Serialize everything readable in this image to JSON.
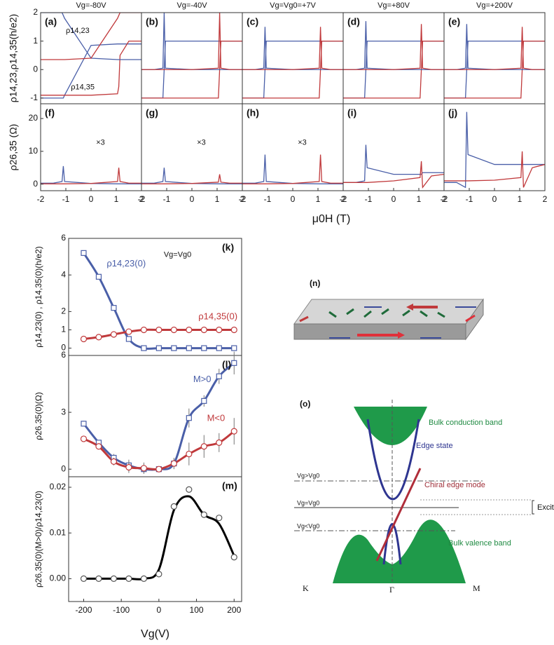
{
  "chart_data": [
    {
      "type": "line",
      "label": "(a)",
      "title": "Vg=-80V",
      "ylabel": "ρ14,23,ρ14,35(h/e2)",
      "annotations": [
        "ρ14,23",
        "ρ14,35"
      ],
      "x": [
        -2,
        -1.5,
        -1.15,
        -1.1,
        -1.05,
        0,
        1.05,
        1.1,
        1.15,
        1.5,
        2
      ],
      "xlim": [
        -2,
        2
      ],
      "ylim": [
        -1.2,
        2
      ],
      "yticks": [
        -1,
        0,
        1,
        2
      ],
      "series": [
        {
          "color": "#4a5fa8",
          "values": [
            -1,
            -1,
            -1,
            -1,
            -0.9,
            0.85,
            0.9,
            0.9,
            0.9,
            0.9,
            0.9
          ]
        },
        {
          "color": "#c0393b",
          "values": [
            -0.9,
            -0.9,
            -0.9,
            -0.9,
            -0.9,
            -0.9,
            -0.85,
            -0.6,
            0.5,
            1,
            1
          ]
        },
        {
          "color": "#4a5fa8",
          "values": [
            2,
            2,
            2,
            1.9,
            1.8,
            0.4,
            0.35,
            0.35,
            0.35,
            0.35,
            0.35
          ]
        },
        {
          "color": "#c0393b",
          "values": [
            0.35,
            0.35,
            0.35,
            0.35,
            0.35,
            0.4,
            1.8,
            1.9,
            2,
            2,
            2
          ]
        }
      ]
    },
    {
      "type": "line",
      "label": "(b)",
      "title": "Vg=-40V",
      "x": [
        -2,
        -1.5,
        -1.15,
        -1.1,
        -1.05,
        0,
        1.05,
        1.1,
        1.15,
        1.5,
        2
      ],
      "xlim": [
        -2,
        2
      ],
      "ylim": [
        -1.2,
        2
      ],
      "series": [
        {
          "color": "#4a5fa8",
          "values": [
            -1,
            -1,
            -1,
            0,
            1,
            1,
            1,
            1,
            1,
            1,
            1
          ]
        },
        {
          "color": "#c0393b",
          "values": [
            -1,
            -1,
            -1,
            -1,
            -1,
            -1,
            -1,
            0,
            1,
            1,
            1
          ]
        },
        {
          "color": "#4a5fa8",
          "values": [
            0,
            0,
            0.05,
            2,
            0.05,
            0,
            0,
            0,
            0,
            0,
            0
          ]
        },
        {
          "color": "#c0393b",
          "values": [
            0,
            0,
            0,
            0,
            0,
            0,
            0.05,
            2,
            0.05,
            0,
            0
          ]
        }
      ]
    },
    {
      "type": "line",
      "label": "(c)",
      "title": "Vg=Vg0=+7V",
      "x": [
        -2,
        -1.5,
        -1.15,
        -1.1,
        -1.05,
        0,
        1.05,
        1.1,
        1.15,
        1.5,
        2
      ],
      "xlim": [
        -2,
        2
      ],
      "ylim": [
        -1.2,
        2
      ],
      "series": [
        {
          "color": "#4a5fa8",
          "values": [
            -1,
            -1,
            -1,
            0,
            1,
            1,
            1,
            1,
            1,
            1,
            1
          ]
        },
        {
          "color": "#c0393b",
          "values": [
            -1,
            -1,
            -1,
            -1,
            -1,
            -1,
            -1,
            0,
            1,
            1,
            1
          ]
        },
        {
          "color": "#4a5fa8",
          "values": [
            0,
            0,
            0.05,
            1.5,
            0.05,
            0,
            0,
            0,
            0,
            0,
            0
          ]
        },
        {
          "color": "#c0393b",
          "values": [
            0,
            0,
            0,
            0,
            0,
            0,
            0.05,
            1.5,
            0.05,
            0,
            0
          ]
        }
      ]
    },
    {
      "type": "line",
      "label": "(d)",
      "title": "Vg=+80V",
      "x": [
        -2,
        -1.5,
        -1.15,
        -1.1,
        -1.05,
        0,
        1.05,
        1.1,
        1.15,
        1.5,
        2
      ],
      "xlim": [
        -2,
        2
      ],
      "ylim": [
        -1.2,
        2
      ],
      "series": [
        {
          "color": "#4a5fa8",
          "values": [
            -1,
            -1,
            -1,
            0,
            1,
            1,
            1,
            1,
            1,
            1,
            1
          ]
        },
        {
          "color": "#c0393b",
          "values": [
            -1,
            -1,
            -1,
            -1,
            -1,
            -1,
            -1,
            0,
            1,
            1,
            1
          ]
        },
        {
          "color": "#4a5fa8",
          "values": [
            0,
            0,
            0.05,
            1.7,
            0.05,
            0,
            0,
            0,
            0,
            0,
            0
          ]
        },
        {
          "color": "#c0393b",
          "values": [
            0,
            0,
            0,
            0,
            0,
            0,
            0.05,
            1.6,
            0.05,
            0,
            0
          ]
        }
      ]
    },
    {
      "type": "line",
      "label": "(e)",
      "title": "Vg=+200V",
      "x": [
        -2,
        -1.5,
        -1.15,
        -1.1,
        -1.05,
        0,
        1.05,
        1.1,
        1.15,
        1.5,
        2
      ],
      "xlim": [
        -2,
        2
      ],
      "ylim": [
        -1.2,
        2
      ],
      "series": [
        {
          "color": "#4a5fa8",
          "values": [
            -1,
            -1,
            -1,
            0,
            1,
            1,
            1,
            1,
            1,
            1,
            1
          ]
        },
        {
          "color": "#c0393b",
          "values": [
            -1,
            -1,
            -1,
            -1,
            -1,
            -1,
            -1,
            0,
            1,
            1,
            1
          ]
        },
        {
          "color": "#4a5fa8",
          "values": [
            0,
            0,
            0.05,
            1.6,
            0.05,
            0,
            0,
            0,
            0,
            0,
            0
          ]
        },
        {
          "color": "#c0393b",
          "values": [
            0,
            0,
            0,
            0,
            0,
            0,
            0.05,
            1.5,
            0.05,
            0,
            0
          ]
        }
      ]
    },
    {
      "type": "line",
      "label": "(f)",
      "ylabel": "ρ26,35 (Ω)",
      "annotations": [
        "×3"
      ],
      "x": [
        -2,
        -1.5,
        -1.15,
        -1.1,
        -1.05,
        0,
        1.05,
        1.1,
        1.15,
        1.5,
        2
      ],
      "xlim": [
        -2,
        2
      ],
      "ylim": [
        -2,
        24.5
      ],
      "yticks": [
        0,
        10,
        20
      ],
      "xticks": [
        -2,
        -1,
        0,
        1,
        2
      ],
      "series": [
        {
          "color": "#4a5fa8",
          "values": [
            0.3,
            0.3,
            0.8,
            5.5,
            0.8,
            0.2,
            0.1,
            0.1,
            0.1,
            0.1,
            0.1
          ]
        },
        {
          "color": "#c0393b",
          "values": [
            0.1,
            0.1,
            0.1,
            0.1,
            0.1,
            0.2,
            0.8,
            5,
            0.8,
            0.3,
            0.3
          ]
        }
      ]
    },
    {
      "type": "line",
      "label": "(g)",
      "annotations": [
        "×3"
      ],
      "x": [
        -2,
        -1.5,
        -1.15,
        -1.1,
        -1.05,
        0,
        1.05,
        1.1,
        1.15,
        1.5,
        2
      ],
      "xlim": [
        -2,
        2
      ],
      "ylim": [
        -2,
        24.5
      ],
      "xticks": [
        -2,
        -1,
        0,
        1,
        2
      ],
      "series": [
        {
          "color": "#4a5fa8",
          "values": [
            0.3,
            0.3,
            0.8,
            5,
            0.8,
            0.2,
            0.1,
            0.1,
            0.1,
            0.1,
            0.1
          ]
        },
        {
          "color": "#c0393b",
          "values": [
            0.1,
            0.1,
            0.1,
            0.1,
            0.1,
            0.2,
            0.6,
            3,
            0.6,
            0.3,
            0.3
          ]
        }
      ]
    },
    {
      "type": "line",
      "label": "(h)",
      "annotations": [
        "×3"
      ],
      "xlabel": "μ0H (T)",
      "x": [
        -2,
        -1.5,
        -1.15,
        -1.1,
        -1.05,
        0,
        1.05,
        1.1,
        1.15,
        1.5,
        2
      ],
      "xlim": [
        -2,
        2
      ],
      "ylim": [
        -2,
        24.5
      ],
      "xticks": [
        -2,
        -1,
        0,
        1,
        2
      ],
      "series": [
        {
          "color": "#4a5fa8",
          "values": [
            0.3,
            0.3,
            0.8,
            9,
            0.8,
            0.2,
            0.1,
            0.1,
            0.1,
            0.1,
            0.1
          ]
        },
        {
          "color": "#c0393b",
          "values": [
            0.1,
            0.1,
            0.1,
            0.1,
            0.1,
            0.2,
            0.8,
            9,
            0.8,
            0.3,
            0.3
          ]
        }
      ]
    },
    {
      "type": "line",
      "label": "(i)",
      "x": [
        -2,
        -1.5,
        -1.15,
        -1.1,
        -1.05,
        0,
        1.05,
        1.1,
        1.15,
        1.5,
        2
      ],
      "xlim": [
        -2,
        2
      ],
      "ylim": [
        -2,
        24.5
      ],
      "xticks": [
        -2,
        -1,
        0,
        1,
        2
      ],
      "series": [
        {
          "color": "#4a5fa8",
          "values": [
            0.5,
            0.5,
            1,
            12,
            5,
            3,
            3,
            3,
            3.5,
            3.5,
            3.5
          ]
        },
        {
          "color": "#c0393b",
          "values": [
            0.5,
            0.5,
            0.5,
            0.5,
            0.5,
            1,
            2,
            7,
            -1,
            2.5,
            3
          ]
        }
      ]
    },
    {
      "type": "line",
      "label": "(j)",
      "x": [
        -2,
        -1.5,
        -1.15,
        -1.1,
        -1.05,
        0,
        1.05,
        1.1,
        1.15,
        1.5,
        2
      ],
      "xlim": [
        -2,
        2
      ],
      "ylim": [
        -2,
        24.5
      ],
      "xticks": [
        -2,
        -1,
        0,
        1,
        2
      ],
      "series": [
        {
          "color": "#4a5fa8",
          "values": [
            0.5,
            0.5,
            -1,
            22,
            9,
            6,
            6,
            6,
            6,
            6,
            6
          ]
        },
        {
          "color": "#c0393b",
          "values": [
            1,
            1,
            1,
            1,
            1,
            1.2,
            2,
            10,
            -1,
            5,
            6
          ]
        }
      ]
    },
    {
      "type": "line",
      "label": "(k)",
      "ylabel": "ρ14,23(0) , ρ14,35(0)(h/e2)",
      "annotations": [
        "Vg=Vg0"
      ],
      "smooth": true,
      "x": [
        -200,
        -160,
        -120,
        -80,
        -40,
        0,
        40,
        80,
        120,
        160,
        200
      ],
      "xlim": [
        -240,
        220
      ],
      "ylim": [
        -0.4,
        6
      ],
      "yticks": [
        0,
        1,
        2,
        4,
        6
      ],
      "series": [
        {
          "name": "ρ14,23(0)",
          "color": "#4a5fa8",
          "marker": "square",
          "values": [
            5.2,
            3.9,
            2.2,
            0.5,
            0,
            0,
            0,
            0,
            0,
            0,
            0
          ]
        },
        {
          "name": "ρ14,35(0)",
          "color": "#c0393b",
          "marker": "circle",
          "values": [
            0.5,
            0.6,
            0.75,
            0.9,
            1,
            1,
            1,
            1,
            1,
            1,
            1
          ]
        }
      ]
    },
    {
      "type": "line",
      "label": "(l)",
      "ylabel": "ρ26,35(0)(Ω)",
      "smooth": true,
      "x": [
        -200,
        -160,
        -120,
        -80,
        -40,
        0,
        40,
        80,
        120,
        160,
        200
      ],
      "xlim": [
        -240,
        220
      ],
      "ylim": [
        -0.4,
        6
      ],
      "yticks": [
        0,
        3,
        6
      ],
      "series": [
        {
          "name": "M>0",
          "color": "#4a5fa8",
          "marker": "square",
          "values": [
            2.4,
            1.4,
            0.6,
            0.2,
            0,
            0,
            0.3,
            2.7,
            3.6,
            4.9,
            5.6
          ],
          "errors": [
            0.15,
            0.1,
            0.2,
            0.3,
            0.2,
            0.1,
            0.2,
            0.5,
            0.3,
            0.4,
            0.6
          ]
        },
        {
          "name": "M<0",
          "color": "#c0393b",
          "marker": "circle",
          "values": [
            1.6,
            1.2,
            0.4,
            0.1,
            0.05,
            0,
            0.3,
            0.8,
            1.2,
            1.4,
            2
          ],
          "errors": [
            0.15,
            0.15,
            0.2,
            0.3,
            0.3,
            0.1,
            0.3,
            0.6,
            0.6,
            0.5,
            0.7
          ]
        }
      ]
    },
    {
      "type": "line",
      "label": "(m)",
      "ylabel": "ρ26,35(0)(M>0)/ρ14,23(0)",
      "xlabel": "Vg(V)",
      "smooth": true,
      "x": [
        -200,
        -160,
        -120,
        -80,
        -40,
        0,
        40,
        80,
        120,
        160,
        200
      ],
      "xlim": [
        -240,
        220
      ],
      "ylim": [
        -0.005,
        0.0223
      ],
      "xticks": [
        -200,
        -100,
        0,
        100,
        200
      ],
      "yticks": [
        {
          "value": 0,
          "label": "0.00"
        },
        0.01,
        0.02
      ],
      "series": [
        {
          "color": "#555555",
          "marker": "circle",
          "line": false,
          "values": [
            0,
            0,
            0,
            0,
            0,
            0.001,
            0.0158,
            0.0195,
            0.014,
            0.0133,
            0.0047
          ]
        },
        {
          "color": "#000000",
          "values": [
            0,
            0,
            0,
            0,
            0,
            0.002,
            0.015,
            0.018,
            0.014,
            0.012,
            0.005
          ]
        }
      ]
    }
  ],
  "diagram_n": {
    "label": "(n)"
  },
  "diagram_o": {
    "label": "(o)",
    "conduction": "Bulk conduction band",
    "edge": "Edge state",
    "chiral": "Chiral edge mode",
    "gap": "Excitation gap",
    "valence": "Bulk valence band",
    "above": "Vg>Vg0",
    "equal": "Vg=Vg0",
    "below": "Vg<Vg0",
    "k": "K",
    "gamma": "Γ",
    "m": "M"
  }
}
